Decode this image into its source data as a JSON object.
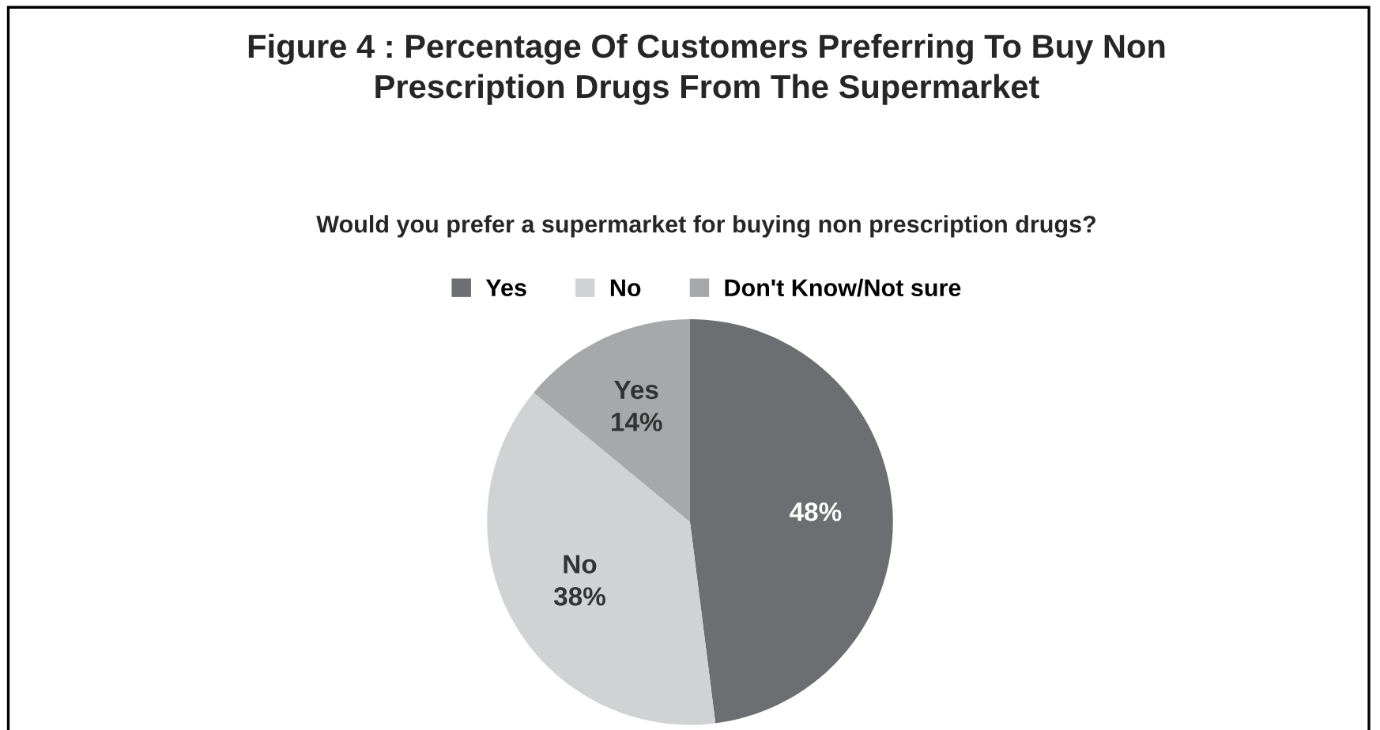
{
  "chart_data": {
    "type": "pie",
    "title": "Figure 4 : Percentage Of Customers Preferring To Buy Non\nPrescription Drugs From The Supermarket",
    "subtitle": "Would you prefer a supermarket for buying non prescription drugs?",
    "categories": [
      "Yes",
      "No",
      "Don't Know/Not sure"
    ],
    "values": [
      48,
      38,
      14
    ],
    "colors": [
      "#6d6e71",
      "#d1d2d4",
      "#a7a8aa"
    ],
    "value_labels": [
      "48%",
      "No\n38%",
      "Yes\n14%"
    ],
    "legend": "top"
  }
}
